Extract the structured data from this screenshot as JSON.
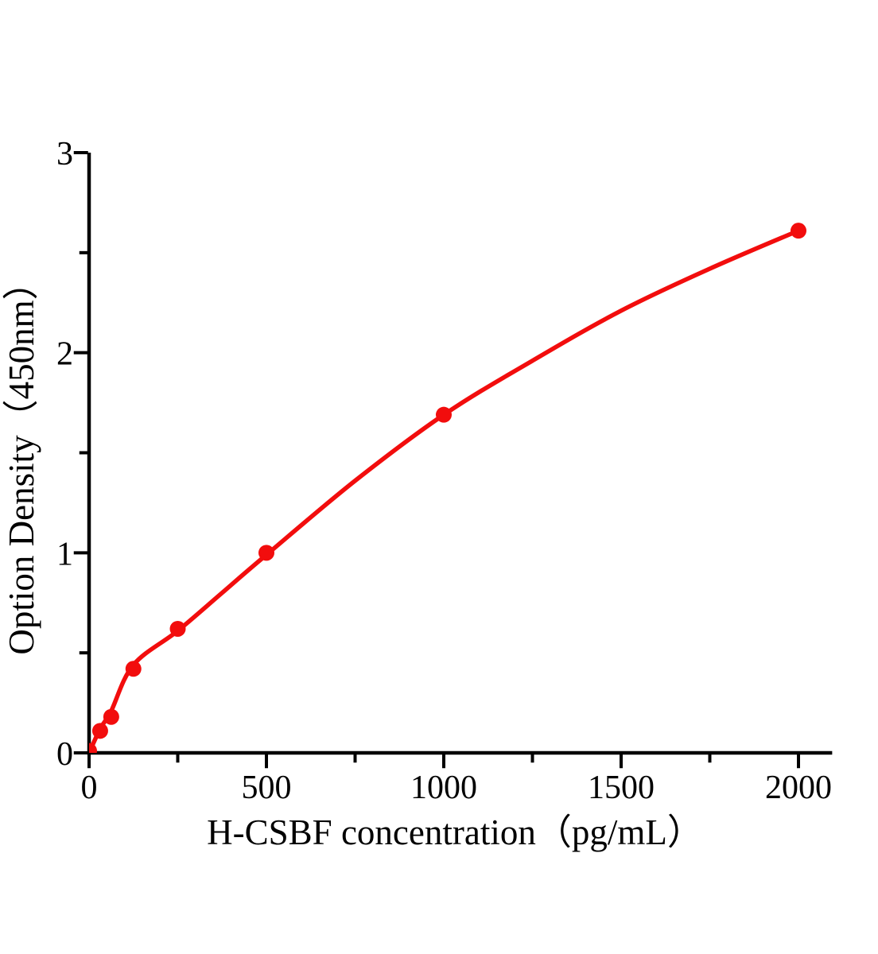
{
  "figure": {
    "background": "#ffffff"
  },
  "chart_data": {
    "type": "scatter",
    "title": "",
    "xlabel": "H-CSBF concentration（pg/mL）",
    "ylabel": "Option Density（450nm）",
    "x_ticks": [
      0,
      500,
      1000,
      1500,
      2000
    ],
    "x_minor_ticks": [
      250,
      750,
      1250,
      1750
    ],
    "y_ticks": [
      0,
      1,
      2,
      3
    ],
    "y_minor_ticks": [
      0.5,
      1.5,
      2.5
    ],
    "xlim": [
      0,
      2095
    ],
    "ylim": [
      0,
      3
    ],
    "grid": false,
    "legend_position": "none",
    "accent_color": "#f20d0d",
    "axis_color": "#000000",
    "marker_radius": 10,
    "line_width": 5.5,
    "series": [
      {
        "name": "standard-points",
        "kind": "scatter",
        "color": "#f20d0d",
        "x": [
          0,
          31.25,
          62.5,
          125,
          250,
          500,
          1000,
          2000
        ],
        "y": [
          0.01,
          0.11,
          0.18,
          0.42,
          0.62,
          1.0,
          1.69,
          2.61
        ]
      },
      {
        "name": "fitted-curve",
        "kind": "line",
        "color": "#f20d0d",
        "x": [
          0,
          31.25,
          62.5,
          125,
          250,
          375,
          500,
          750,
          1000,
          1250,
          1500,
          1750,
          2000
        ],
        "y": [
          0,
          0.12,
          0.21,
          0.44,
          0.61,
          0.8,
          0.99,
          1.36,
          1.69,
          1.96,
          2.21,
          2.42,
          2.61
        ]
      }
    ]
  }
}
